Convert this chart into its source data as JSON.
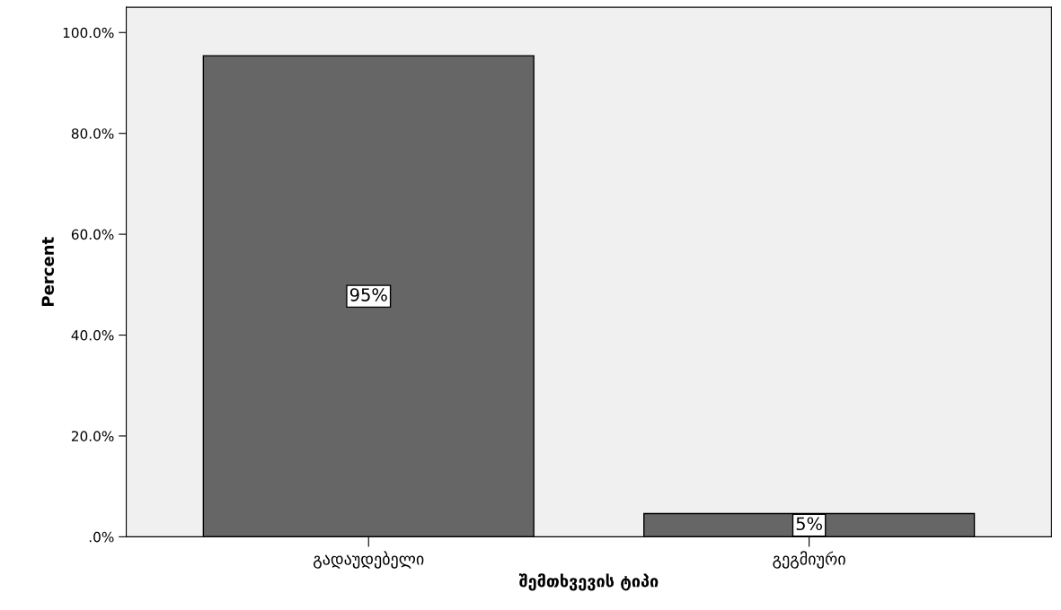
{
  "chart_data": {
    "type": "bar",
    "xlabel": "შემთხვევის ტიპი",
    "ylabel": "Percent",
    "categories": [
      "გადაუდებელი",
      "გეგმიური"
    ],
    "values": [
      95.4,
      4.6
    ],
    "color": "#666666",
    "value_labels": [
      "95%",
      "5%"
    ],
    "ylim": [
      0,
      105
    ],
    "yticks": [
      {
        "value": 0,
        "label": ".0%"
      },
      {
        "value": 20,
        "label": "20.0%"
      },
      {
        "value": 40,
        "label": "40.0%"
      },
      {
        "value": 60,
        "label": "60.0%"
      },
      {
        "value": 80,
        "label": "80.0%"
      },
      {
        "value": 100,
        "label": "100.0%"
      }
    ],
    "grid": false,
    "legend": false
  }
}
